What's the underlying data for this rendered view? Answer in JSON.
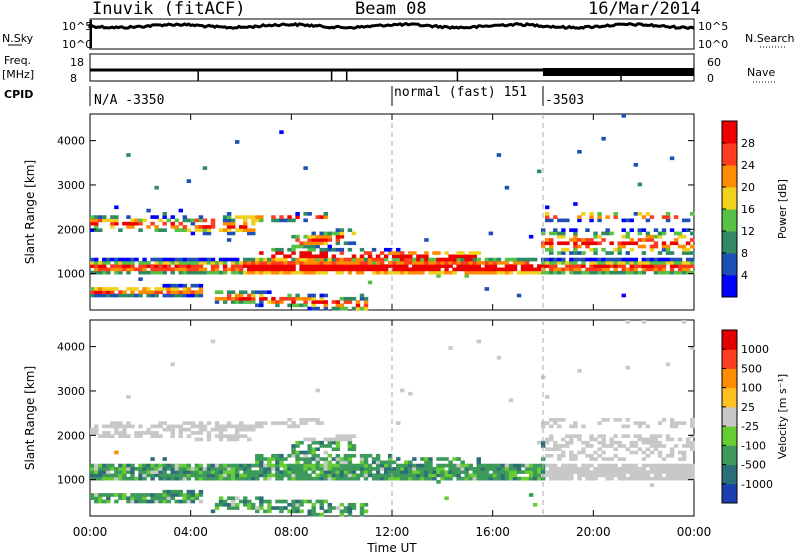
{
  "header": {
    "station": "Inuvik (fitACF)",
    "beam": "Beam 08",
    "date": "16/Mar/2014"
  },
  "top_panels": {
    "nsky_label": "N.Sky",
    "nsky_ticks": [
      "10^5",
      "10^0"
    ],
    "nsearch_label": "N.Search",
    "nsearch_ticks": [
      "10^5",
      "10^0"
    ],
    "freq_label": "Freq.",
    "freq_unit": "[MHz]",
    "freq_ticks": [
      "18",
      "8"
    ],
    "nave_label": "Nave",
    "nave_ticks": [
      "60",
      "0"
    ],
    "cpid_label": "CPID",
    "cpid_segments": [
      {
        "label": "N/A -3350",
        "start": "00:00"
      },
      {
        "label": "normal (fast) 151",
        "start": "12:00"
      },
      {
        "label": "-3503",
        "start": "18:00"
      }
    ]
  },
  "chart_data": [
    {
      "type": "heatmap",
      "panel": "power",
      "ylabel": "Slant Range [km]",
      "yticks": [
        "1000",
        "2000",
        "3000",
        "4000"
      ],
      "ylim": [
        180,
        4600
      ],
      "colorbar_label": "Power [dB]",
      "colorbar_ticks": [
        "4",
        "8",
        "12",
        "16",
        "20",
        "24",
        "28"
      ],
      "colorbar_range": [
        0,
        32
      ],
      "colors": [
        "#0000ff",
        "#1e4fb4",
        "#2f8a64",
        "#56c145",
        "#f0d21e",
        "#ff8c00",
        "#ff3c1e",
        "#ee0000"
      ]
    },
    {
      "type": "heatmap",
      "panel": "velocity",
      "ylabel": "Slant Range [km]",
      "yticks": [
        "1000",
        "2000",
        "3000",
        "4000"
      ],
      "ylim": [
        180,
        4600
      ],
      "colorbar_label": "Velocity [m s⁻¹]",
      "colorbar_ticks": [
        "1000",
        "500",
        "100",
        "25",
        "-25",
        "-100",
        "-500",
        "-1000"
      ],
      "colors": [
        "#1a3fb0",
        "#2d6e78",
        "#3c9a5a",
        "#66cc33",
        "#c8c8c8",
        "#ffc020",
        "#ff8c00",
        "#ff4020",
        "#e00000"
      ]
    }
  ],
  "time_axis": {
    "xlabel": "Time UT",
    "ticks": [
      "00:00",
      "04:00",
      "08:00",
      "12:00",
      "16:00",
      "20:00",
      "00:00"
    ]
  }
}
